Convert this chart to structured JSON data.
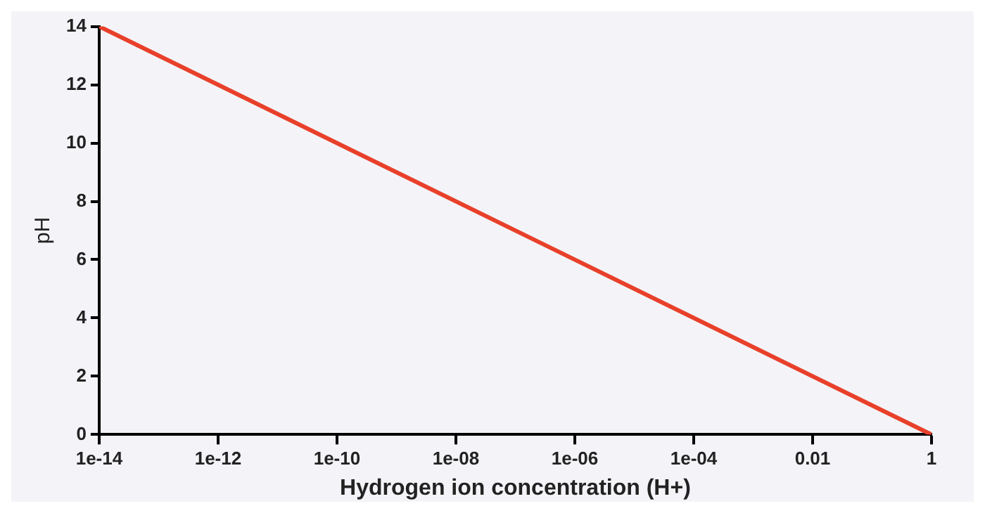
{
  "chart_data": {
    "type": "line",
    "xlabel": "Hydrogen ion concentration (H+)",
    "ylabel": "pH",
    "log": "x",
    "grid": false,
    "legend": false,
    "marker": "none",
    "line_style": "solid",
    "x": [
      1e-14,
      1
    ],
    "series": [
      {
        "color": "#e8402a",
        "values": [
          14,
          0
        ]
      }
    ],
    "xlim": [
      1e-14,
      1
    ],
    "xticks": [
      {
        "value": 1e-14,
        "label": "1e-14"
      },
      {
        "value": 1e-12,
        "label": "1e-12"
      },
      {
        "value": 1e-10,
        "label": "1e-10"
      },
      {
        "value": 1e-08,
        "label": "1e-08"
      },
      {
        "value": 1e-06,
        "label": "1e-06"
      },
      {
        "value": 0.0001,
        "label": "1e-04"
      },
      0.01,
      1
    ],
    "ylim": [
      0,
      14
    ],
    "yticks": [
      0,
      2,
      4,
      6,
      8,
      10,
      12,
      14
    ]
  }
}
